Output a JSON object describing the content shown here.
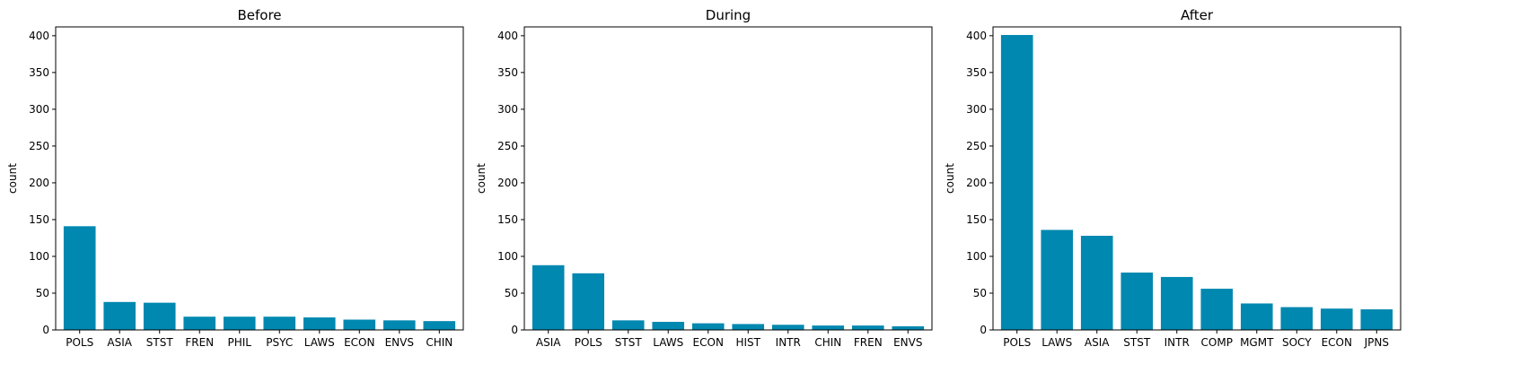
{
  "chart_data": [
    {
      "type": "bar",
      "title": "Before",
      "xlabel": "",
      "ylabel": "count",
      "ylim": [
        0,
        412
      ],
      "yticks": [
        0,
        50,
        100,
        150,
        200,
        250,
        300,
        350,
        400
      ],
      "categories": [
        "POLS",
        "ASIA",
        "STST",
        "FREN",
        "PHIL",
        "PSYC",
        "LAWS",
        "ECON",
        "ENVS",
        "CHIN"
      ],
      "values": [
        141,
        38,
        37,
        18,
        18,
        18,
        17,
        14,
        13,
        12
      ],
      "bar_color": "#0088b0"
    },
    {
      "type": "bar",
      "title": "During",
      "xlabel": "",
      "ylabel": "count",
      "ylim": [
        0,
        412
      ],
      "yticks": [
        0,
        50,
        100,
        150,
        200,
        250,
        300,
        350,
        400
      ],
      "categories": [
        "ASIA",
        "POLS",
        "STST",
        "LAWS",
        "ECON",
        "HIST",
        "INTR",
        "CHIN",
        "FREN",
        "ENVS"
      ],
      "values": [
        88,
        77,
        13,
        11,
        9,
        8,
        7,
        6,
        6,
        5
      ],
      "bar_color": "#0088b0"
    },
    {
      "type": "bar",
      "title": "After",
      "xlabel": "",
      "ylabel": "count",
      "ylim": [
        0,
        412
      ],
      "yticks": [
        0,
        50,
        100,
        150,
        200,
        250,
        300,
        350,
        400
      ],
      "categories": [
        "POLS",
        "LAWS",
        "ASIA",
        "STST",
        "INTR",
        "COMP",
        "MGMT",
        "SOCY",
        "ECON",
        "JPNS"
      ],
      "values": [
        401,
        136,
        128,
        78,
        72,
        56,
        36,
        31,
        29,
        28
      ],
      "bar_color": "#0088b0"
    }
  ]
}
